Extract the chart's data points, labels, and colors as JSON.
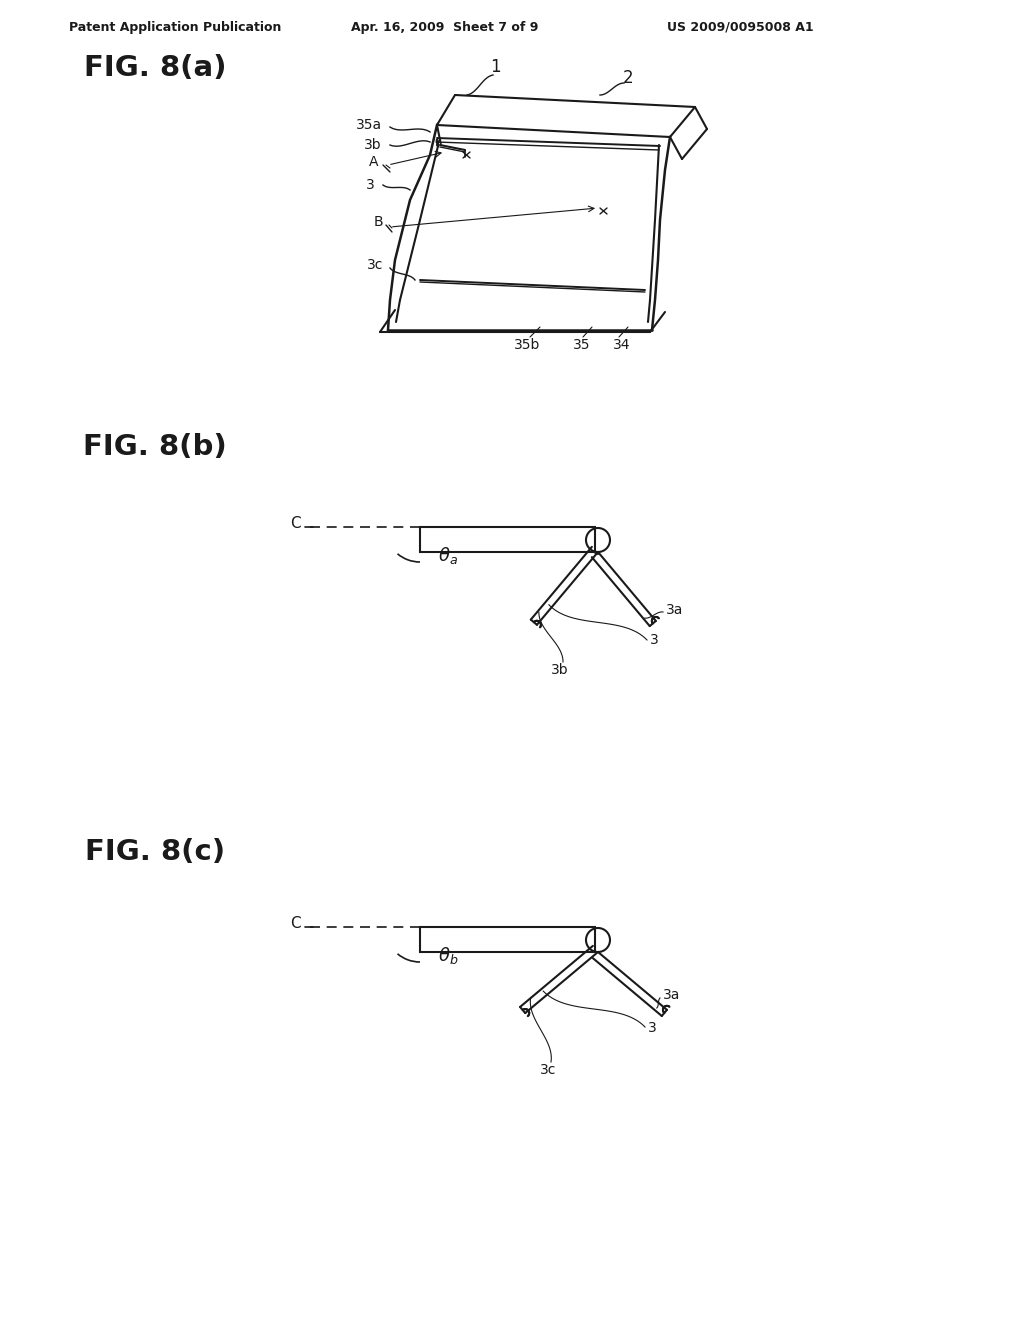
{
  "bg_color": "#ffffff",
  "line_color": "#1a1a1a",
  "header_left": "Patent Application Publication",
  "header_center": "Apr. 16, 2009  Sheet 7 of 9",
  "header_right": "US 2009/0095008 A1",
  "fig_a_label": "FIG. 8(a)",
  "fig_b_label": "FIG. 8(b)",
  "fig_c_label": "FIG. 8(c)"
}
